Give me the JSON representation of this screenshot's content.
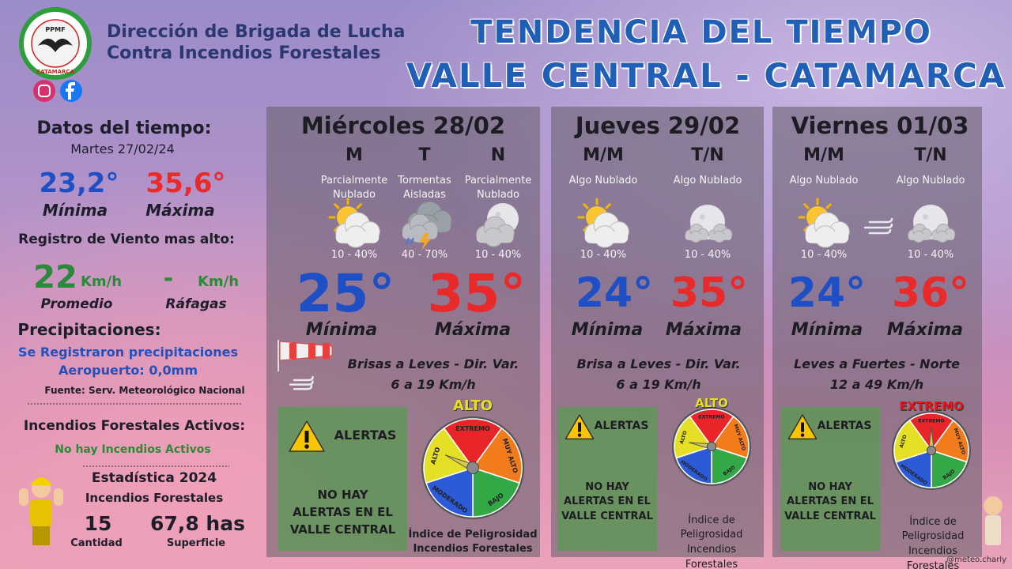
{
  "header": {
    "org_line1": "Dirección de Brigada de Lucha",
    "org_line2": "Contra Incendios Forestales",
    "logo_top": "PPMF",
    "logo_bottom": "CATAMARCA",
    "title_line1": "TENDENCIA DEL TIEMPO",
    "title_line2": "VALLE CENTRAL - CATAMARCA"
  },
  "summary": {
    "title": "Datos del tiempo:",
    "date": "Martes 27/02/24",
    "min": "23,2°",
    "min_label": "Mínima",
    "max": "35,6°",
    "max_label": "Máxima",
    "wind_title": "Registro de Viento mas alto:",
    "wind_avg": "22",
    "wind_avg_unit": "Km/h",
    "wind_avg_label": "Promedio",
    "gust": "-",
    "gust_unit": "Km/h",
    "gust_label": "Ráfagas",
    "precip_title": "Precipitaciones:",
    "precip_line1": "Se Registraron precipitaciones",
    "precip_line2": "Aeropuerto: 0,0mm",
    "source": "Fuente: Serv. Meteorológico Nacional",
    "fires_title": "Incendios Forestales Activos:",
    "fires_status": "No hay Incendios Activos",
    "stats_title": "Estadística 2024",
    "stats_subtitle": "Incendios Forestales",
    "count": "15",
    "count_label": "Cantidad",
    "area": "67,8 has",
    "area_label": "Superficie"
  },
  "gauge_labels": [
    "EXTREMO",
    "MUY ALTO",
    "BAJO",
    "MODERADO",
    "ALTO"
  ],
  "days": [
    {
      "title": "Miércoles 28/02",
      "periods": [
        {
          "label": "M",
          "desc": "Parcialmente Nublado",
          "prob": "10 - 40%"
        },
        {
          "label": "T",
          "desc": "Tormentas Aisladas",
          "prob": "40 - 70%"
        },
        {
          "label": "N",
          "desc": "Parcialmente Nublado",
          "prob": "10 - 40%"
        }
      ],
      "min": "25°",
      "min_label": "Mínima",
      "max": "35°",
      "max_label": "Máxima",
      "wind_line1": "Brisas a Leves - Dir. Var.",
      "wind_line2": "6 a 19 Km/h",
      "alert_title": "ALERTAS",
      "alert_text": "NO HAY ALERTAS EN EL VALLE CENTRAL",
      "danger_level": "ALTO",
      "danger_caption": "Índice de Peligrosidad Incendios Forestales"
    },
    {
      "title": "Jueves 29/02",
      "periods": [
        {
          "label": "M/M",
          "desc": "Algo Nublado",
          "prob": "10 - 40%"
        },
        {
          "label": "T/N",
          "desc": "Algo Nublado",
          "prob": "10 - 40%"
        }
      ],
      "min": "24°",
      "min_label": "Mínima",
      "max": "35°",
      "max_label": "Máxima",
      "wind_line1": "Brisa a Leves - Dir. Var.",
      "wind_line2": "6 a 19 Km/h",
      "alert_title": "ALERTAS",
      "alert_text": "NO HAY ALERTAS EN EL VALLE CENTRAL",
      "danger_level": "ALTO",
      "danger_caption": "Índice de Peligrosidad Incendios Forestales"
    },
    {
      "title": "Viernes 01/03",
      "periods": [
        {
          "label": "M/M",
          "desc": "Algo Nublado",
          "prob": "10 - 40%"
        },
        {
          "label": "T/N",
          "desc": "Algo Nublado",
          "prob": "10 - 40%"
        }
      ],
      "min": "24°",
      "min_label": "Mínima",
      "max": "36°",
      "max_label": "Máxima",
      "wind_line1": "Leves a Fuertes - Norte",
      "wind_line2": "12 a 49 Km/h",
      "alert_title": "ALERTAS",
      "alert_text": "NO HAY ALERTAS EN EL VALLE CENTRAL",
      "danger_level": "EXTREMO",
      "danger_caption": "Índice de Peligrosidad Incendios Forestales"
    }
  ],
  "credit": "@meteo.charly"
}
